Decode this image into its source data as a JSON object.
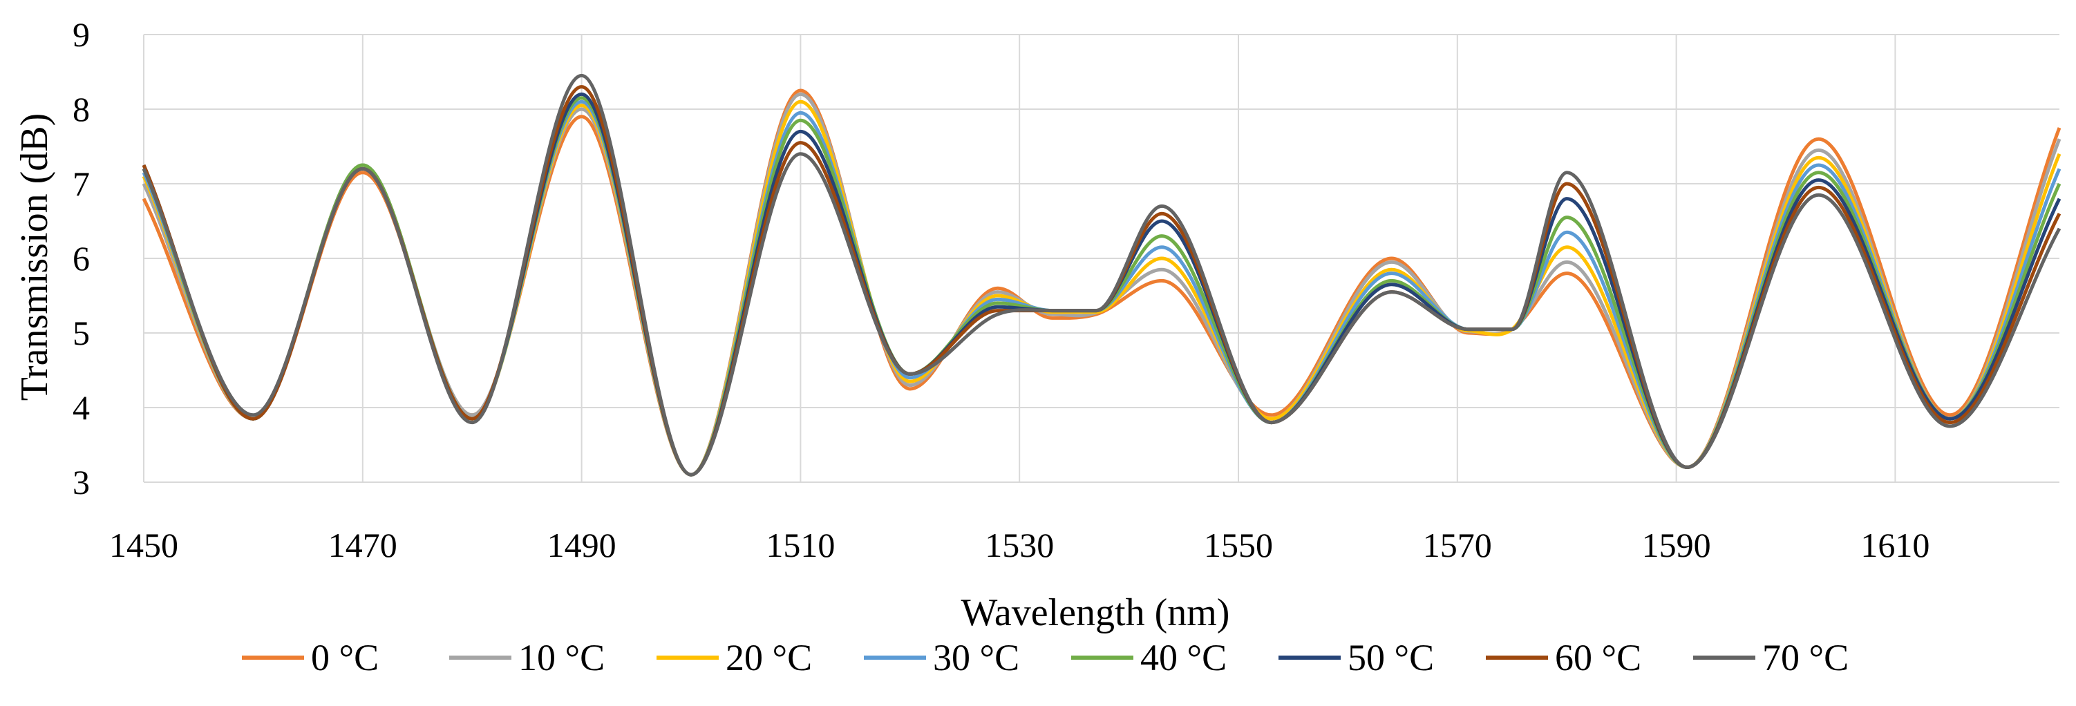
{
  "chart_data": {
    "type": "line",
    "title": "",
    "xlabel": "Wavelength (nm)",
    "ylabel": "Transmission (dB)",
    "xlim": [
      1450,
      1625
    ],
    "ylim": [
      3,
      9
    ],
    "xticks": [
      1450,
      1470,
      1490,
      1510,
      1530,
      1550,
      1570,
      1590,
      1610
    ],
    "yticks": [
      3,
      4,
      5,
      6,
      7,
      8,
      9
    ],
    "grid": true,
    "legend_position": "bottom",
    "x": [
      1450,
      1460,
      1470,
      1480,
      1490,
      1500,
      1510,
      1520,
      1528,
      1533,
      1537,
      1543,
      1553,
      1564,
      1571,
      1575,
      1580,
      1591,
      1603,
      1615,
      1625
    ],
    "series": [
      {
        "name": "0 °C",
        "color": "#ed7d31",
        "values": [
          6.8,
          3.85,
          7.15,
          3.9,
          7.9,
          3.1,
          8.25,
          4.25,
          5.6,
          5.2,
          5.25,
          5.7,
          3.9,
          6.0,
          5.0,
          5.05,
          5.8,
          3.2,
          7.6,
          3.9,
          7.75
        ]
      },
      {
        "name": "10 °C",
        "color": "#a5a5a5",
        "values": [
          7.0,
          3.85,
          7.2,
          3.9,
          8.0,
          3.1,
          8.2,
          4.3,
          5.55,
          5.25,
          5.27,
          5.85,
          3.85,
          5.95,
          5.02,
          5.05,
          5.95,
          3.2,
          7.45,
          3.85,
          7.6
        ]
      },
      {
        "name": "20 °C",
        "color": "#ffc000",
        "values": [
          7.1,
          3.85,
          7.25,
          3.85,
          8.05,
          3.1,
          8.1,
          4.35,
          5.5,
          5.28,
          5.28,
          6.0,
          3.85,
          5.85,
          5.03,
          5.05,
          6.15,
          3.2,
          7.35,
          3.85,
          7.4
        ]
      },
      {
        "name": "30 °C",
        "color": "#5b9bd5",
        "values": [
          7.15,
          3.85,
          7.25,
          3.85,
          8.1,
          3.1,
          7.95,
          4.4,
          5.45,
          5.3,
          5.3,
          6.15,
          3.8,
          5.8,
          5.05,
          5.05,
          6.35,
          3.2,
          7.25,
          3.85,
          7.2
        ]
      },
      {
        "name": "40 °C",
        "color": "#70ad47",
        "values": [
          7.2,
          3.85,
          7.25,
          3.85,
          8.15,
          3.1,
          7.85,
          4.45,
          5.4,
          5.3,
          5.3,
          6.3,
          3.8,
          5.7,
          5.05,
          5.05,
          6.55,
          3.2,
          7.15,
          3.85,
          7.0
        ]
      },
      {
        "name": "50 °C",
        "color": "#264478",
        "values": [
          7.25,
          3.85,
          7.2,
          3.85,
          8.2,
          3.1,
          7.7,
          4.45,
          5.35,
          5.3,
          5.3,
          6.5,
          3.8,
          5.65,
          5.05,
          5.05,
          6.8,
          3.2,
          7.05,
          3.85,
          6.8
        ]
      },
      {
        "name": "60 °C",
        "color": "#9e480e",
        "values": [
          7.25,
          3.85,
          7.2,
          3.85,
          8.3,
          3.1,
          7.55,
          4.45,
          5.3,
          5.3,
          5.3,
          6.6,
          3.8,
          5.55,
          5.05,
          5.05,
          7.0,
          3.2,
          6.95,
          3.8,
          6.6
        ]
      },
      {
        "name": "70 °C",
        "color": "#636363",
        "values": [
          7.2,
          3.9,
          7.2,
          3.8,
          8.45,
          3.1,
          7.4,
          4.45,
          5.25,
          5.3,
          5.3,
          6.7,
          3.8,
          5.55,
          5.05,
          5.05,
          7.15,
          3.2,
          6.85,
          3.75,
          6.4
        ]
      }
    ]
  }
}
